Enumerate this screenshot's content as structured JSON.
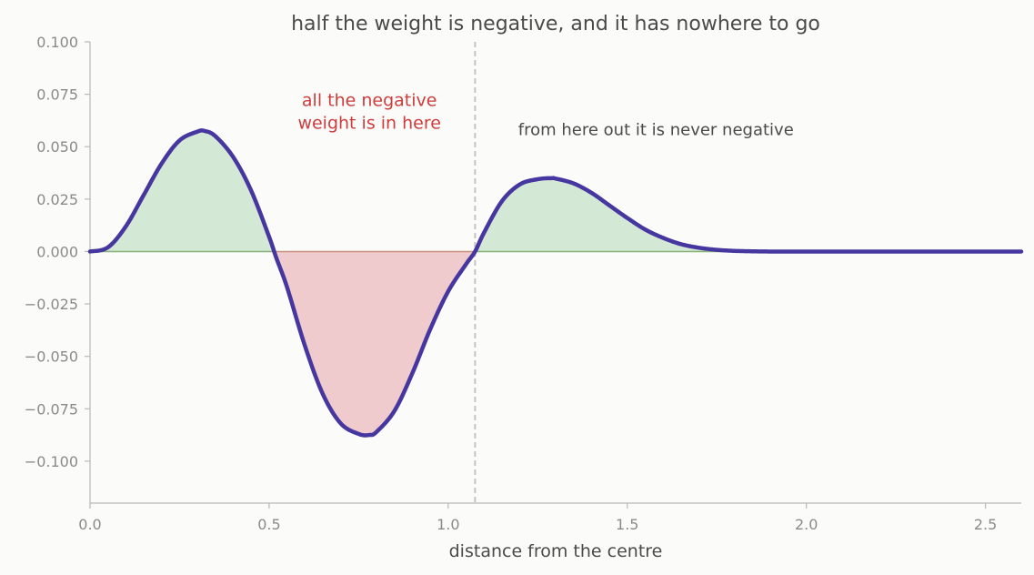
{
  "chart_data": {
    "type": "area",
    "title": "half the weight is negative, and it has nowhere to go",
    "xlabel": "distance from the centre",
    "ylabel": "",
    "xlim": [
      0,
      2.6
    ],
    "ylim": [
      -0.12,
      0.1
    ],
    "xticks": [
      0.0,
      0.5,
      1.0,
      1.5,
      2.0,
      2.5
    ],
    "xtick_labels": [
      "0.0",
      "0.5",
      "1.0",
      "1.5",
      "2.0",
      "2.5"
    ],
    "yticks": [
      0.1,
      0.075,
      0.05,
      0.025,
      0.0,
      -0.025,
      -0.05,
      -0.075,
      -0.1
    ],
    "ytick_labels": [
      "0.100",
      "0.075",
      "0.050",
      "0.025",
      "0.000",
      "−0.025",
      "−0.050",
      "−0.075",
      "−0.100"
    ],
    "grid": false,
    "legend": "none",
    "vline_x": 1.075,
    "series": [
      {
        "x": [
          0.0,
          0.05,
          0.1,
          0.15,
          0.2,
          0.25,
          0.3,
          0.32,
          0.35,
          0.4,
          0.45,
          0.5,
          0.52,
          0.55,
          0.6,
          0.65,
          0.7,
          0.75,
          0.78,
          0.8,
          0.85,
          0.9,
          0.95,
          1.0,
          1.05,
          1.075,
          1.1,
          1.15,
          1.2,
          1.25,
          1.29,
          1.3,
          1.35,
          1.4,
          1.45,
          1.5,
          1.55,
          1.6,
          1.65,
          1.7,
          1.75,
          1.8,
          1.85,
          1.9,
          2.0,
          2.1,
          2.2,
          2.3,
          2.4,
          2.5,
          2.6
        ],
        "y": [
          0.0,
          0.002,
          0.012,
          0.027,
          0.042,
          0.053,
          0.0572,
          0.0575,
          0.055,
          0.045,
          0.029,
          0.007,
          -0.003,
          -0.017,
          -0.045,
          -0.068,
          -0.082,
          -0.087,
          -0.0875,
          -0.086,
          -0.076,
          -0.058,
          -0.037,
          -0.019,
          -0.006,
          0.0,
          0.009,
          0.024,
          0.032,
          0.0345,
          0.035,
          0.0348,
          0.0325,
          0.028,
          0.022,
          0.016,
          0.0105,
          0.0065,
          0.0035,
          0.0018,
          0.0008,
          0.0003,
          0.0001,
          0.0,
          0.0,
          0.0,
          0.0,
          0.0,
          0.0,
          0.0,
          0.0
        ]
      }
    ],
    "annotations": [
      {
        "lines": [
          "all the negative",
          "weight is in here"
        ],
        "x": 0.78,
        "y": 0.069
      },
      {
        "lines": [
          "from here out it is never negative"
        ],
        "x": 1.58,
        "y": 0.0555
      }
    ]
  },
  "colors": {
    "line": "#4636a0",
    "positive_fill": "#d3e8d5",
    "negative_fill": "#f0cbcd",
    "zero_line_pos": "#88b17a",
    "zero_line_neg": "#c8917e",
    "axis": "#b8b8b8",
    "vline": "#c4c4c4"
  }
}
